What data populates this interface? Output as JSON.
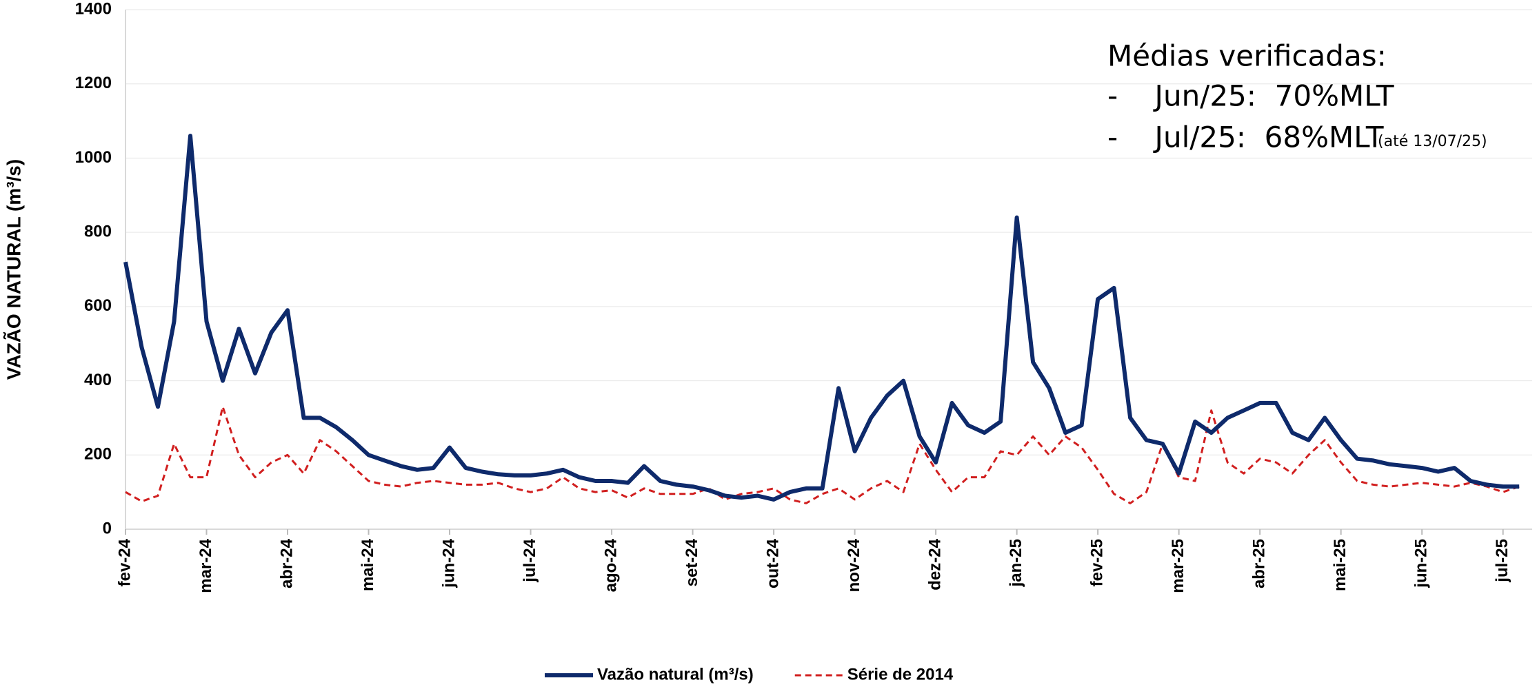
{
  "chart_data": {
    "type": "line",
    "y_label": "VAZÃO NATURAL  (m³/s)",
    "annotations": [
      "Médias verificadas:",
      "-    Jun/25:  70%MLT",
      "-    Jul/25:  68%MLT",
      "(até 13/07/25)"
    ],
    "categories": [
      "fev-24",
      null,
      null,
      null,
      null,
      "mar-24",
      null,
      null,
      null,
      null,
      "abr-24",
      null,
      null,
      null,
      null,
      "mai-24",
      null,
      null,
      null,
      null,
      "jun-24",
      null,
      null,
      null,
      null,
      "jul-24",
      null,
      null,
      null,
      null,
      "ago-24",
      null,
      null,
      null,
      null,
      "set-24",
      null,
      null,
      null,
      null,
      "out-24",
      null,
      null,
      null,
      null,
      "nov-24",
      null,
      null,
      null,
      null,
      "dez-24",
      null,
      null,
      null,
      null,
      "jan-25",
      null,
      null,
      null,
      null,
      "fev-25",
      null,
      null,
      null,
      null,
      "mar-25",
      null,
      null,
      null,
      null,
      "abr-25",
      null,
      null,
      null,
      null,
      "mai-25",
      null,
      null,
      null,
      null,
      "jun-25",
      null,
      null,
      null,
      null,
      "jul-25",
      null
    ],
    "series": [
      {
        "name": "Vazão natural (m³/s)",
        "color": "#0e2a6b",
        "dash": false,
        "values": [
          720,
          490,
          330,
          560,
          1060,
          560,
          400,
          540,
          420,
          530,
          590,
          300,
          300,
          275,
          240,
          200,
          185,
          170,
          160,
          165,
          220,
          165,
          155,
          148,
          145,
          145,
          150,
          160,
          140,
          130,
          130,
          125,
          170,
          130,
          120,
          115,
          105,
          90,
          85,
          90,
          80,
          100,
          110,
          110,
          380,
          210,
          300,
          360,
          400,
          250,
          180,
          340,
          280,
          260,
          290,
          840,
          450,
          380,
          260,
          280,
          620,
          650,
          300,
          240,
          230,
          150,
          290,
          260,
          300,
          320,
          340,
          340,
          260,
          240,
          300,
          240,
          190,
          185,
          175,
          170,
          165,
          155,
          165,
          130,
          120,
          115,
          115
        ]
      },
      {
        "name": "Série de 2014",
        "color": "#d11f1f",
        "dash": true,
        "values": [
          100,
          75,
          90,
          230,
          140,
          140,
          330,
          200,
          140,
          180,
          200,
          150,
          240,
          210,
          170,
          130,
          120,
          115,
          125,
          130,
          125,
          120,
          120,
          125,
          110,
          100,
          110,
          140,
          110,
          100,
          105,
          85,
          110,
          95,
          95,
          95,
          110,
          80,
          95,
          100,
          110,
          80,
          70,
          95,
          110,
          80,
          110,
          130,
          100,
          230,
          160,
          100,
          140,
          140,
          210,
          200,
          250,
          200,
          250,
          220,
          160,
          95,
          70,
          100,
          230,
          140,
          130,
          320,
          180,
          150,
          190,
          180,
          150,
          200,
          240,
          180,
          130,
          120,
          115,
          120,
          125,
          120,
          115,
          125,
          115,
          100,
          115
        ]
      }
    ],
    "ylim": [
      0,
      1400
    ],
    "yticks": [
      0,
      200,
      400,
      600,
      800,
      1000,
      1200,
      1400
    ],
    "grid": true,
    "legend": "bottom"
  }
}
